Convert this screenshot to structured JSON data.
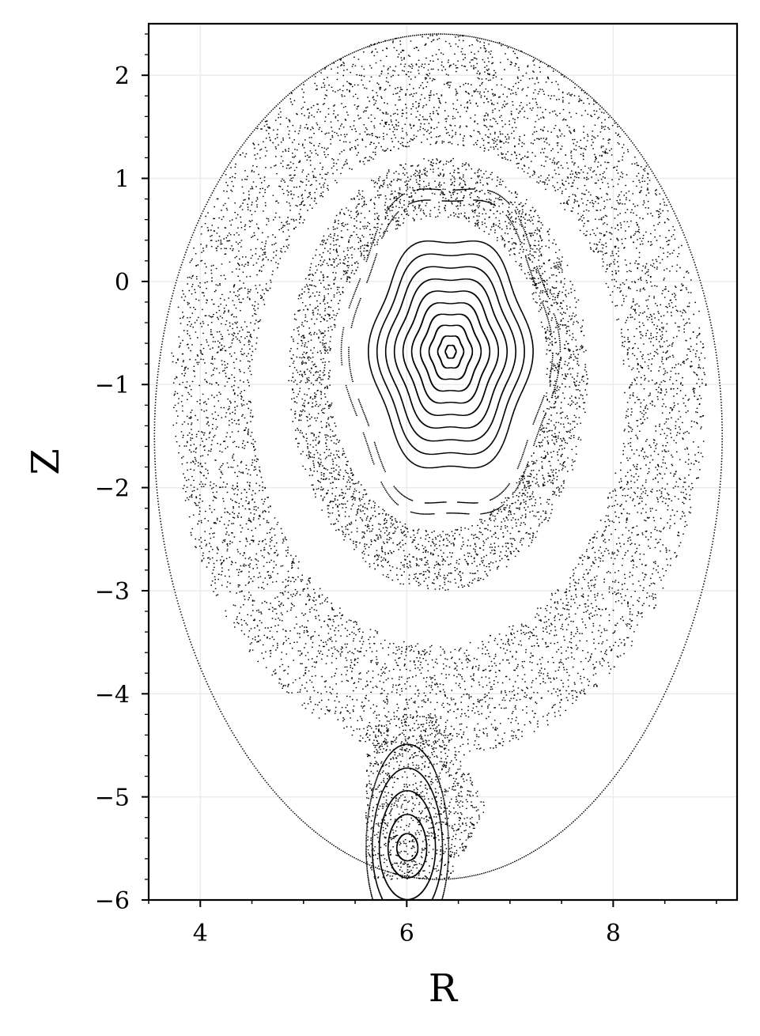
{
  "chart_data": {
    "type": "scatter",
    "description_kind": "poincare-section",
    "title": "",
    "xlabel": "R",
    "ylabel": "Z",
    "xlim": [
      3.5,
      9.2
    ],
    "ylim": [
      -6,
      2.5
    ],
    "xticks": [
      4,
      6,
      8
    ],
    "xtick_labels": [
      "4",
      "6",
      "8"
    ],
    "yticks": [
      2,
      1,
      0,
      -1,
      -2,
      -3,
      -4,
      -5,
      -6
    ],
    "ytick_labels": [
      "2",
      "1",
      "0",
      "−1",
      "−2",
      "−3",
      "−4",
      "−5",
      "−6"
    ],
    "grid": true,
    "marker_color": "#000000",
    "main_island": {
      "o_point": [
        6.42,
        -0.68
      ],
      "nested_surfaces": [
        {
          "r_eq": 0.05,
          "elong": 1.25
        },
        {
          "r_eq": 0.12,
          "elong": 1.3
        },
        {
          "r_eq": 0.2,
          "elong": 1.32
        },
        {
          "r_eq": 0.28,
          "elong": 1.34
        },
        {
          "r_eq": 0.36,
          "elong": 1.36
        },
        {
          "r_eq": 0.44,
          "elong": 1.38
        },
        {
          "r_eq": 0.52,
          "elong": 1.4
        },
        {
          "r_eq": 0.6,
          "elong": 1.42
        },
        {
          "r_eq": 0.68,
          "elong": 1.44
        },
        {
          "r_eq": 0.76,
          "elong": 1.46
        }
      ]
    },
    "lower_island": {
      "o_point": [
        6.0,
        -5.5
      ],
      "nested_surfaces": [
        {
          "r_eq": 0.12,
          "elong": 1.0
        },
        {
          "r_eq": 0.22,
          "elong": 1.3
        },
        {
          "r_eq": 0.32,
          "elong": 1.55
        },
        {
          "r_eq": 0.4,
          "elong": 1.75
        },
        {
          "r_eq": 0.47,
          "elong": 1.95
        }
      ]
    }
  }
}
